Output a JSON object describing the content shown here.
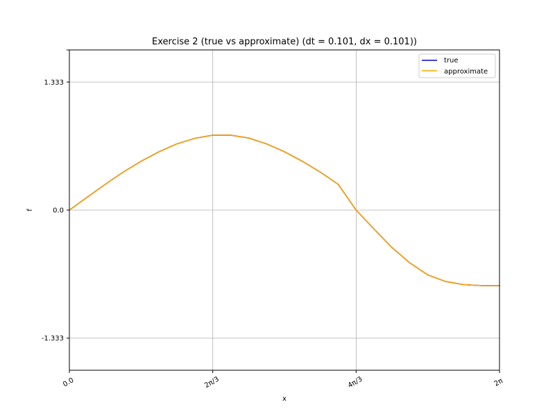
{
  "chart_data": {
    "type": "line",
    "title": "Exercise 2 (true vs approximate) (dt = 0.101, dx = 0.101))",
    "xlabel": "x",
    "ylabel": "f",
    "xlim": [
      0,
      6.283185
    ],
    "ylim": [
      -1.667,
      1.667
    ],
    "x_ticks": [
      {
        "value": 0,
        "label": "0.0"
      },
      {
        "value": 2.094395,
        "label": "2π/3"
      },
      {
        "value": 4.18879,
        "label": "4π/3"
      },
      {
        "value": 6.283185,
        "label": "2π"
      }
    ],
    "y_ticks": [
      {
        "value": -1.333,
        "label": "-1.333"
      },
      {
        "value": 0,
        "label": "0.0"
      },
      {
        "value": 1.333,
        "label": "1.333"
      }
    ],
    "grid": true,
    "legend_position": "top-right",
    "x": [
      0.0,
      0.2618,
      0.5236,
      0.7854,
      1.0472,
      1.309,
      1.5708,
      1.8326,
      2.0944,
      2.3562,
      2.618,
      2.8798,
      3.1416,
      3.4034,
      3.6652,
      3.927,
      4.1888,
      4.4506,
      4.7124,
      4.9742,
      5.236,
      5.4978,
      5.7596,
      6.0214,
      6.2832
    ],
    "series": [
      {
        "name": "true",
        "color": "#0000cc",
        "values": [
          0.0,
          0.135,
          0.268,
          0.395,
          0.508,
          0.607,
          0.689,
          0.747,
          0.78,
          0.78,
          0.75,
          0.689,
          0.607,
          0.508,
          0.395,
          0.268,
          0.0,
          -0.198,
          -0.39,
          -0.55,
          -0.675,
          -0.744,
          -0.776,
          -0.786,
          -0.787
        ]
      },
      {
        "name": "approximate",
        "color": "#ffa500",
        "values": [
          0.0,
          0.135,
          0.268,
          0.395,
          0.508,
          0.607,
          0.689,
          0.747,
          0.78,
          0.78,
          0.75,
          0.689,
          0.607,
          0.508,
          0.395,
          0.268,
          0.0,
          -0.198,
          -0.39,
          -0.55,
          -0.675,
          -0.744,
          -0.776,
          -0.786,
          -0.787
        ]
      }
    ]
  }
}
